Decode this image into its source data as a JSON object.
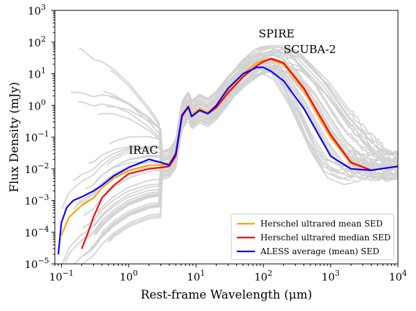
{
  "chart_data": {
    "type": "line",
    "xlabel": "Rest-frame Wavelength (μm)",
    "ylabel": "Flux Density (mJy)",
    "xscale": "log",
    "yscale": "log",
    "xlim": [
      0.08,
      10000
    ],
    "ylim": [
      1e-05,
      1000
    ],
    "x_ticks": [
      {
        "v": 0.1,
        "b": "10",
        "e": "−1"
      },
      {
        "v": 1,
        "b": "10",
        "e": "0"
      },
      {
        "v": 10,
        "b": "10",
        "e": "1"
      },
      {
        "v": 100,
        "b": "10",
        "e": "2"
      },
      {
        "v": 1000,
        "b": "10",
        "e": "3"
      },
      {
        "v": 10000,
        "b": "10",
        "e": "4"
      }
    ],
    "y_ticks": [
      {
        "v": 1e-05,
        "b": "10",
        "e": "−5"
      },
      {
        "v": 0.0001,
        "b": "10",
        "e": "−4"
      },
      {
        "v": 0.001,
        "b": "10",
        "e": "−3"
      },
      {
        "v": 0.01,
        "b": "10",
        "e": "−2"
      },
      {
        "v": 0.1,
        "b": "10",
        "e": "−1"
      },
      {
        "v": 1,
        "b": "10",
        "e": "0"
      },
      {
        "v": 10,
        "b": "10",
        "e": "1"
      },
      {
        "v": 100,
        "b": "10",
        "e": "2"
      },
      {
        "v": 1000,
        "b": "10",
        "e": "3"
      }
    ],
    "annotations": [
      {
        "text": "IRAC",
        "x": 1.0,
        "y": 0.03
      },
      {
        "text": "SPIRE",
        "x": 85,
        "y": 140
      },
      {
        "text": "SCUBA-2",
        "x": 200,
        "y": 45
      }
    ],
    "legend_position": "lower-right",
    "series": [
      {
        "name": "Herschel ultrared mean SED",
        "color": "#FFA500",
        "x": [
          0.1,
          0.13,
          0.2,
          0.3,
          0.4,
          0.6,
          1.0,
          2.0,
          3.0,
          4.0,
          5.0,
          6.2,
          7.7,
          8.6,
          11.3,
          15,
          20,
          30,
          50,
          80,
          100,
          130,
          200,
          400,
          1000,
          2000,
          4000,
          10000
        ],
        "y": [
          8e-05,
          0.0003,
          0.0007,
          0.0012,
          0.0025,
          0.005,
          0.009,
          0.013,
          0.013,
          0.015,
          0.03,
          0.5,
          1.0,
          0.5,
          0.8,
          0.6,
          1.0,
          3.0,
          10,
          22,
          27,
          28,
          20,
          3.0,
          0.1,
          0.015,
          0.009,
          0.012
        ]
      },
      {
        "name": "Herschel ultrared median SED",
        "color": "#FF0000",
        "x": [
          0.2,
          0.25,
          0.3,
          0.4,
          0.5,
          0.6,
          1.0,
          2.0,
          3.0,
          4.0,
          5.0,
          6.2,
          7.7,
          8.6,
          11.3,
          15,
          20,
          30,
          50,
          80,
          100,
          130,
          200,
          400,
          1000,
          2000,
          4000,
          10000
        ],
        "y": [
          3e-05,
          0.0001,
          0.0003,
          0.0012,
          0.002,
          0.003,
          0.007,
          0.01,
          0.011,
          0.012,
          0.025,
          0.45,
          0.9,
          0.45,
          0.7,
          0.55,
          0.85,
          2.5,
          8,
          18,
          24,
          30,
          22,
          3.5,
          0.12,
          0.016,
          0.009,
          0.012
        ]
      },
      {
        "name": "ALESS average (mean) SED",
        "color": "#0000FF",
        "x": [
          0.09,
          0.1,
          0.12,
          0.15,
          0.2,
          0.3,
          0.4,
          0.6,
          1.0,
          2.0,
          3.0,
          4.0,
          5.0,
          6.2,
          7.7,
          8.6,
          11.3,
          15,
          20,
          30,
          50,
          80,
          100,
          130,
          200,
          400,
          1000,
          2000,
          4000,
          10000
        ],
        "y": [
          2e-05,
          0.0002,
          0.0006,
          0.001,
          0.0013,
          0.002,
          0.003,
          0.006,
          0.011,
          0.02,
          0.016,
          0.013,
          0.03,
          0.5,
          0.9,
          0.45,
          0.7,
          0.55,
          1.0,
          3.5,
          10,
          16,
          16,
          12,
          6,
          0.8,
          0.025,
          0.01,
          0.009,
          0.012
        ]
      }
    ],
    "background_curves": {
      "color": "#D3D3D3",
      "count": 40
    }
  }
}
